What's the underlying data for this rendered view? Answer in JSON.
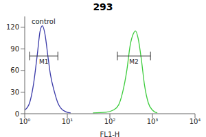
{
  "chart_data": {
    "type": "line",
    "title": "293",
    "x_label": "FL1-H",
    "log": "x",
    "xlim": [
      1,
      10000
    ],
    "xticks": [
      {
        "value": 1,
        "label": "10⁰"
      },
      {
        "value": 10,
        "label": "10¹"
      },
      {
        "value": 100,
        "label": "10²"
      },
      {
        "value": 1000,
        "label": "10³"
      },
      {
        "value": 10000,
        "label": "10⁴"
      }
    ],
    "ylim": [
      0,
      135
    ],
    "yticks": [
      0,
      30,
      60,
      90,
      120
    ],
    "series": [
      {
        "name": "control",
        "color": "#3a3aa8",
        "x": [
          1,
          1.3,
          1.6,
          2,
          2.3,
          2.6,
          3,
          3.5,
          4,
          5,
          6,
          7,
          9,
          12
        ],
        "values": [
          5,
          15,
          40,
          85,
          115,
          122,
          110,
          80,
          55,
          30,
          15,
          8,
          3,
          1
        ]
      },
      {
        "color": "#3ccc3c",
        "x": [
          40,
          80,
          120,
          160,
          200,
          250,
          300,
          350,
          400,
          460,
          550,
          650,
          800,
          1000,
          1300
        ],
        "values": [
          1,
          2,
          5,
          12,
          30,
          60,
          95,
          110,
          115,
          105,
          75,
          40,
          15,
          5,
          1
        ]
      }
    ],
    "gates": [
      {
        "label": "M1",
        "x": [
          1.3,
          6
        ]
      },
      {
        "label": "M2",
        "x": [
          150,
          900
        ]
      }
    ]
  }
}
